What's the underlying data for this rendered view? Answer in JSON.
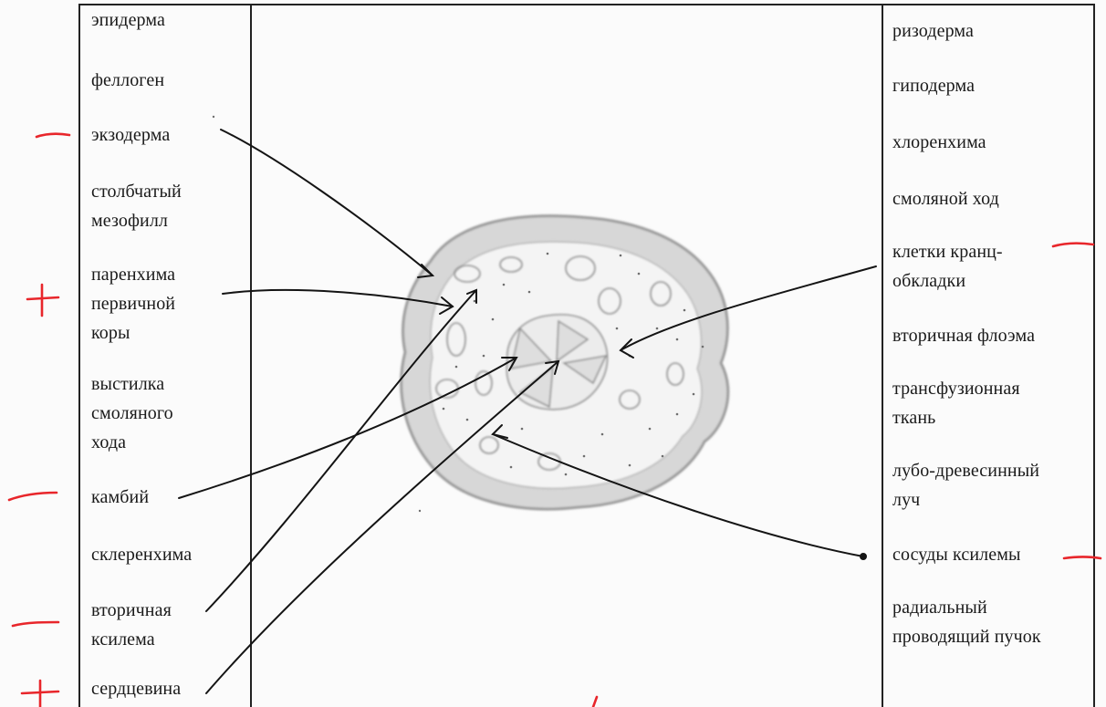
{
  "left_labels": [
    {
      "id": "epiderma",
      "text": "эпидерма"
    },
    {
      "id": "fellogen",
      "text": "феллоген"
    },
    {
      "id": "ekzoderma",
      "text": "экзодерма"
    },
    {
      "id": "stolbchatyy-mezofill",
      "text": "столбчатый\nмезофилл"
    },
    {
      "id": "parenkhima-pervichnoy-kory",
      "text": "паренхима\nпервичной\nкоры"
    },
    {
      "id": "vystilka-smolyanogo-khoda",
      "text": "выстилка\nсмоляного\nхода"
    },
    {
      "id": "kambiy",
      "text": "камбий"
    },
    {
      "id": "sklerenkhima",
      "text": "склеренхима"
    },
    {
      "id": "vtorichnaya-ksilema",
      "text": "вторичная\nксилема"
    },
    {
      "id": "serdtsevina",
      "text": "сердцевина"
    }
  ],
  "right_labels": [
    {
      "id": "rizoderma",
      "text": "ризодерма"
    },
    {
      "id": "gipoderma",
      "text": "гиподерма"
    },
    {
      "id": "khlorenkhima",
      "text": "хлоренхима"
    },
    {
      "id": "smolyanoy-khod",
      "text": "смоляной ход"
    },
    {
      "id": "kletki-krants-obkladki",
      "text": "клетки кранц-\nобкладки"
    },
    {
      "id": "vtorichnaya-floema",
      "text": "вторичная флоэма"
    },
    {
      "id": "transfuzionnaya-tkan",
      "text": "трансфузионная\nткань"
    },
    {
      "id": "lubo-drevesinnyy-luch",
      "text": "лубо-древесинный\nлуч"
    },
    {
      "id": "sosudy-ksilemy",
      "text": "сосуды ксилемы"
    },
    {
      "id": "radialnyy-provodyashchiy-puchok",
      "text": "радиальный\nпроводящий пучок"
    }
  ],
  "grading_marks": [
    {
      "target": "ekzoderma",
      "mark": "−"
    },
    {
      "target": "parenkhima-pervichnoy-kory",
      "mark": "+"
    },
    {
      "target": "kambiy",
      "mark": "−"
    },
    {
      "target": "vtorichnaya-ksilema",
      "mark": "−"
    },
    {
      "target": "serdtsevina",
      "mark": "+"
    },
    {
      "target": "kletki-krants-obkladki",
      "mark": "−"
    },
    {
      "target": "sosudy-ksilemy",
      "mark": "−"
    }
  ],
  "colors": {
    "ink": "#1a1a1a",
    "grading_mark": "#e8262b",
    "pencil": "#8a8a8a"
  }
}
